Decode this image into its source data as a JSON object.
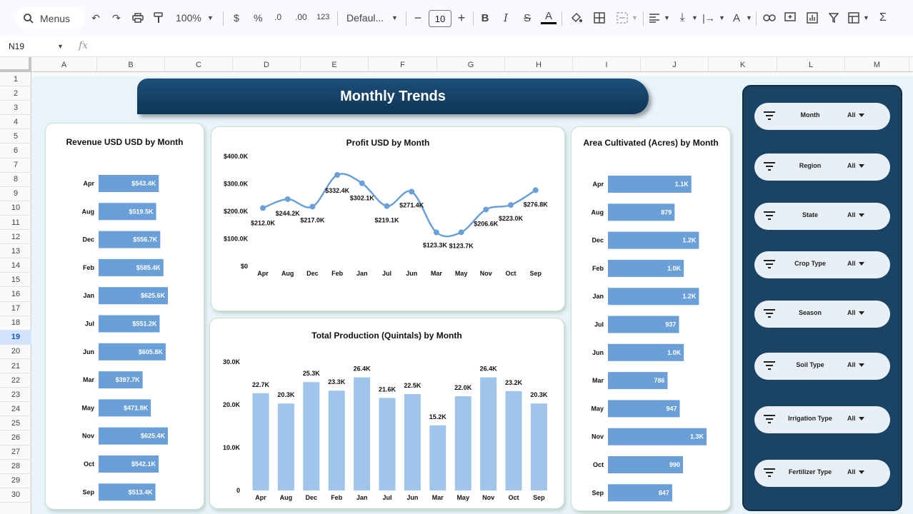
{
  "toolbar": {
    "menus_label": "Menus",
    "zoom": "100%",
    "currency": "$",
    "percent": "%",
    "dec_decrease": ".0",
    "dec_increase": ".00",
    "number_format": "123",
    "font": "Defaul...",
    "font_size": "10"
  },
  "formula_bar": {
    "cell_ref": "N19",
    "fx": "fx"
  },
  "columns": [
    "A",
    "B",
    "C",
    "D",
    "E",
    "F",
    "G",
    "H",
    "I",
    "J",
    "K",
    "L",
    "M"
  ],
  "rows": [
    "1",
    "2",
    "3",
    "4",
    "5",
    "6",
    "7",
    "8",
    "9",
    "10",
    "11",
    "12",
    "13",
    "14",
    "15",
    "16",
    "17",
    "18",
    "19",
    "20",
    "21",
    "22",
    "23",
    "24",
    "25",
    "26",
    "27",
    "28",
    "29",
    "30"
  ],
  "active_row": "19",
  "dashboard": {
    "title": "Monthly Trends",
    "filters": [
      {
        "label": "Month",
        "value": "All"
      },
      {
        "label": "Region",
        "value": "All"
      },
      {
        "label": "State",
        "value": "All"
      },
      {
        "label": "Crop Type",
        "value": "All"
      },
      {
        "label": "Season",
        "value": "All"
      },
      {
        "label": "Soil Type",
        "value": "All"
      },
      {
        "label": "Irrigation Type",
        "value": "All"
      },
      {
        "label": "Fertilizer Type",
        "value": "All"
      }
    ]
  },
  "chart_data": [
    {
      "type": "bar",
      "orientation": "horizontal",
      "title": "Revenue USD USD by Month",
      "categories": [
        "Apr",
        "Aug",
        "Dec",
        "Feb",
        "Jan",
        "Jul",
        "Jun",
        "Mar",
        "May",
        "Nov",
        "Oct",
        "Sep"
      ],
      "values": [
        543.4,
        519.5,
        556.7,
        585.4,
        625.6,
        551.2,
        605.8,
        397.7,
        471.8,
        625.4,
        542.1,
        513.4
      ],
      "data_labels": [
        "$543.4K",
        "$519.5K",
        "$556.7K",
        "$585.4K",
        "$625.6K",
        "$551.2K",
        "$605.8K",
        "$397.7K",
        "$471.8K",
        "$625.4K",
        "$542.1K",
        "$513.4K"
      ],
      "unit": "thousand USD",
      "color": "#6a9fd8"
    },
    {
      "type": "line",
      "title": "Profit USD by Month",
      "categories": [
        "Apr",
        "Aug",
        "Dec",
        "Feb",
        "Jan",
        "Jul",
        "Jun",
        "Mar",
        "May",
        "Nov",
        "Oct",
        "Sep"
      ],
      "values": [
        212.0,
        244.2,
        217.0,
        332.4,
        302.1,
        219.1,
        271.4,
        123.3,
        123.7,
        206.6,
        223.0,
        276.8
      ],
      "data_labels": [
        "$212.0K",
        "$244.2K",
        "$217.0K",
        "$332.4K",
        "$302.1K",
        "$219.1K",
        "$271.4K",
        "$123.3K",
        "$123.7K",
        "$206.6K",
        "$223.0K",
        "$276.8K"
      ],
      "y_ticks": [
        "$0",
        "$100.0K",
        "$200.0K",
        "$300.0K",
        "$400.0K"
      ],
      "ylim": [
        0,
        400
      ],
      "unit": "thousand USD",
      "smooth": true,
      "color": "#6a9fd8"
    },
    {
      "type": "bar",
      "orientation": "vertical",
      "title": "Total Production (Quintals) by Month",
      "categories": [
        "Apr",
        "Aug",
        "Dec",
        "Feb",
        "Jan",
        "Jul",
        "Jun",
        "Mar",
        "May",
        "Nov",
        "Oct",
        "Sep"
      ],
      "values": [
        22.7,
        20.3,
        25.3,
        23.3,
        26.4,
        21.6,
        22.5,
        15.2,
        22.0,
        26.4,
        23.2,
        20.3
      ],
      "data_labels": [
        "22.7K",
        "20.3K",
        "25.3K",
        "23.3K",
        "26.4K",
        "21.6K",
        "22.5K",
        "15.2K",
        "22.0K",
        "26.4K",
        "23.2K",
        "20.3K"
      ],
      "y_ticks": [
        "0",
        "10.0K",
        "20.0K",
        "30.0K"
      ],
      "ylim": [
        0,
        30
      ],
      "unit": "thousand quintals",
      "color": "#9fc5ea"
    },
    {
      "type": "bar",
      "orientation": "horizontal",
      "title": "Area Cultivated (Acres) by Month",
      "categories": [
        "Apr",
        "Aug",
        "Dec",
        "Feb",
        "Jan",
        "Jul",
        "Jun",
        "Mar",
        "May",
        "Nov",
        "Oct",
        "Sep"
      ],
      "values": [
        1100,
        879,
        1200,
        1000,
        1200,
        937,
        1000,
        786,
        947,
        1300,
        990,
        847
      ],
      "data_labels": [
        "1.1K",
        "879",
        "1.2K",
        "1.0K",
        "1.2K",
        "937",
        "1.0K",
        "786",
        "947",
        "1.3K",
        "990",
        "847"
      ],
      "unit": "acres",
      "color": "#6a9fd8"
    }
  ]
}
